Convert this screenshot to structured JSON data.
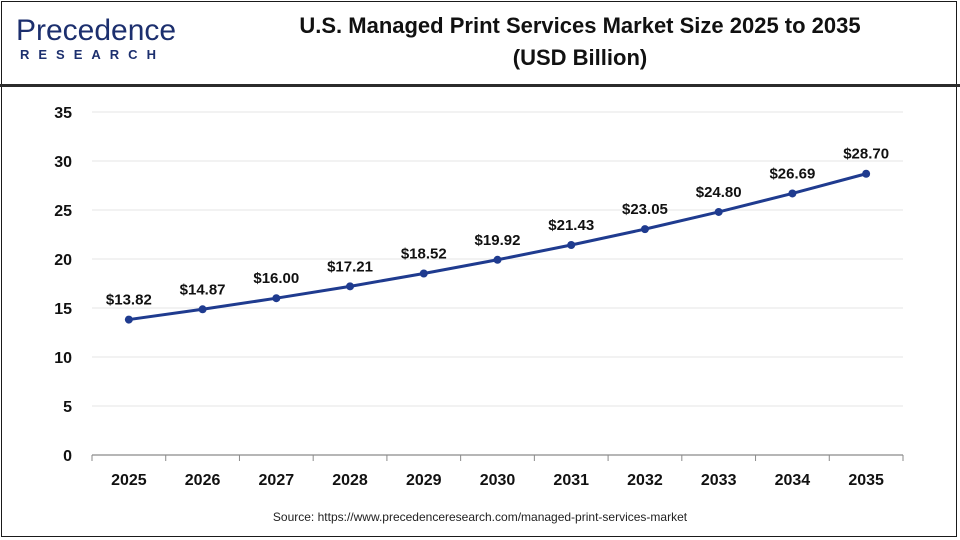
{
  "header": {
    "logo_word": "Precedence",
    "logo_sub": "RESEARCH",
    "title_line1": "U.S. Managed Print Services Market Size 2025 to 2035",
    "title_line2": "(USD Billion)"
  },
  "source_text": "Source: https://www.precedenceresearch.com/managed-print-services-market",
  "colors": {
    "line": "#1f3b8f",
    "brand": "#1c2f6e",
    "grid": "#e6e6e6"
  },
  "chart_data": {
    "type": "line",
    "title": "U.S. Managed Print Services Market Size 2025 to 2035 (USD Billion)",
    "xlabel": "",
    "ylabel": "",
    "categories": [
      "2025",
      "2026",
      "2027",
      "2028",
      "2029",
      "2030",
      "2031",
      "2032",
      "2033",
      "2034",
      "2035"
    ],
    "values": [
      13.82,
      14.87,
      16.0,
      17.21,
      18.52,
      19.92,
      21.43,
      23.05,
      24.8,
      26.69,
      28.7
    ],
    "data_labels": [
      "$13.82",
      "$14.87",
      "$16.00",
      "$17.21",
      "$18.52",
      "$19.92",
      "$21.43",
      "$23.05",
      "$24.80",
      "$26.69",
      "$28.70"
    ],
    "ylim": [
      0,
      35
    ],
    "yticks": [
      0,
      5,
      10,
      15,
      20,
      25,
      30,
      35
    ],
    "grid": true,
    "legend": "none"
  }
}
